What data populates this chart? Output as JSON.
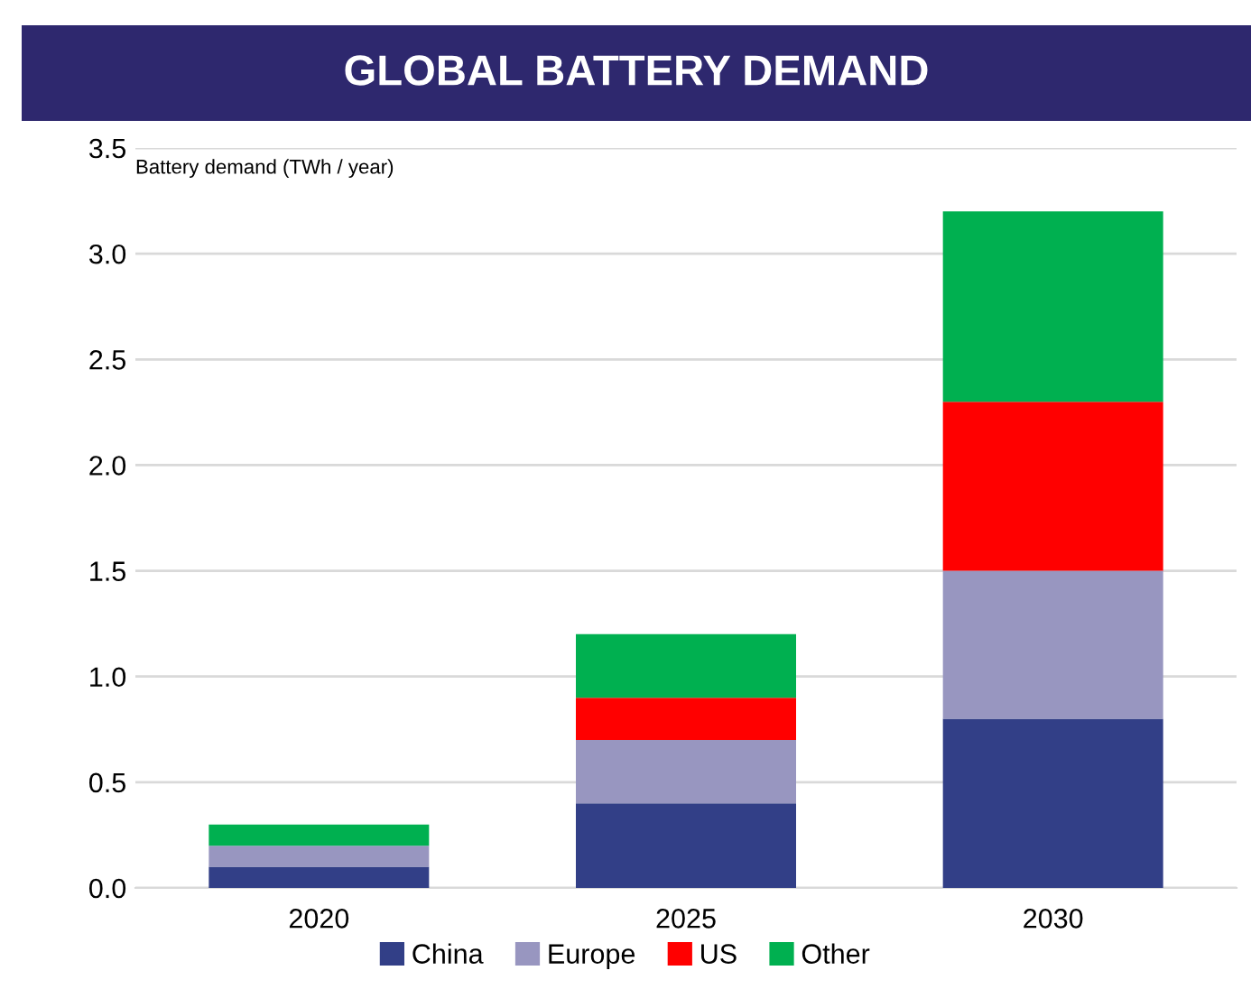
{
  "chart_data": {
    "type": "bar",
    "title": "GLOBAL BATTERY DEMAND",
    "ylabel": "Battery demand (TWh / year)",
    "categories": [
      "2020",
      "2025",
      "2030"
    ],
    "stacked": true,
    "series": [
      {
        "name": "China",
        "color": "#323f87",
        "values": [
          0.1,
          0.4,
          0.8
        ]
      },
      {
        "name": "Europe",
        "color": "#9896c0",
        "values": [
          0.1,
          0.3,
          0.7
        ]
      },
      {
        "name": "US",
        "color": "#ff0000",
        "values": [
          0,
          0.2,
          0.8
        ]
      },
      {
        "name": "Other",
        "color": "#00b050",
        "values": [
          0.1,
          0.3,
          0.9
        ]
      }
    ],
    "ylim": [
      0,
      3.5
    ],
    "yticks": [
      {
        "value": 0,
        "label": "0.0"
      },
      {
        "value": 0.5,
        "label": "0.5"
      },
      {
        "value": 1,
        "label": "1.0"
      },
      {
        "value": 1.5,
        "label": "1.5"
      },
      {
        "value": 2,
        "label": "2.0"
      },
      {
        "value": 2.5,
        "label": "2.5"
      },
      {
        "value": 3,
        "label": "3.0"
      },
      {
        "value": 3.5,
        "label": "3.5"
      }
    ],
    "grid": "y",
    "legend": "bottom"
  }
}
